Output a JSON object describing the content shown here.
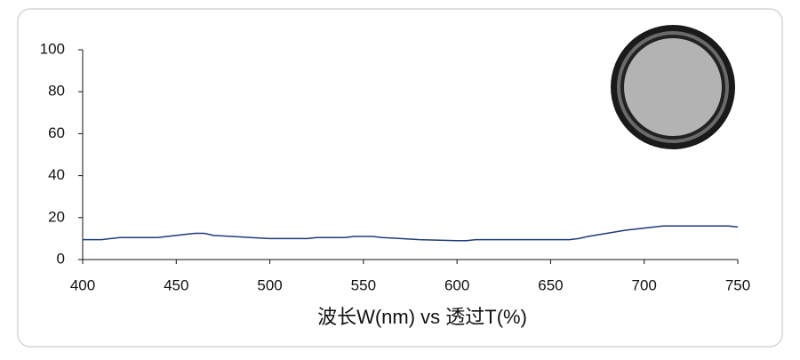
{
  "chart_data": {
    "type": "line",
    "x_label": "波长W(nm) vs 透过T(%)",
    "x": [
      400,
      410,
      415,
      420,
      440,
      445,
      450,
      455,
      460,
      465,
      470,
      480,
      490,
      500,
      520,
      525,
      540,
      545,
      555,
      560,
      570,
      580,
      600,
      605,
      610,
      660,
      665,
      670,
      680,
      690,
      700,
      710,
      720,
      745,
      750
    ],
    "series": [
      {
        "color": "#1f3a7a",
        "values": [
          9.5,
          9.5,
          10,
          10.5,
          10.5,
          11,
          11.5,
          12,
          12.5,
          12.5,
          11.5,
          11,
          10.5,
          10,
          10,
          10.5,
          10.5,
          11,
          11,
          10.5,
          10,
          9.5,
          9,
          9,
          9.5,
          9.5,
          10,
          11,
          12.5,
          14,
          15,
          16,
          16,
          16,
          15.5
        ]
      }
    ],
    "xlim": [
      400,
      750
    ],
    "xticks": [
      400,
      450,
      500,
      550,
      600,
      650,
      700,
      750
    ],
    "ylim": [
      0,
      100
    ],
    "yticks": [
      0,
      20,
      40,
      60,
      80,
      100
    ]
  }
}
